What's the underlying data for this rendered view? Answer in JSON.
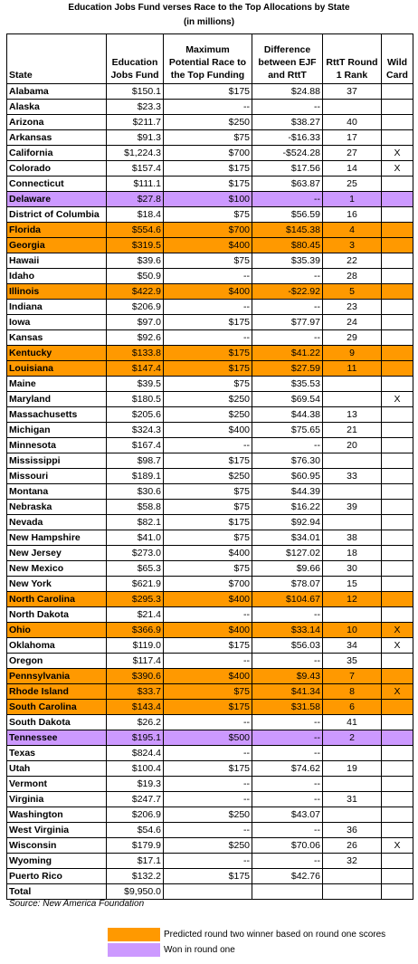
{
  "header": {
    "title": "Education Jobs Fund verses Race to the Top Allocations by State",
    "subtitle": "(in millions)"
  },
  "table": {
    "columns": [
      "State",
      "Education Jobs Fund",
      "Maximum Potential Race to the Top Funding",
      "Difference between EJF and RttT",
      "RttT Round 1 Rank",
      "Wild Card"
    ],
    "rows": [
      {
        "cells": [
          "Alabama",
          "$150.1",
          "$175",
          "$24.88",
          "37",
          null
        ]
      },
      {
        "cells": [
          "Alaska",
          "$23.3",
          "--",
          "--",
          null,
          null
        ]
      },
      {
        "cells": [
          "Arizona",
          "$211.7",
          "$250",
          "$38.27",
          "40",
          null
        ]
      },
      {
        "cells": [
          "Arkansas",
          "$91.3",
          "$75",
          "-$16.33",
          "17",
          null
        ]
      },
      {
        "cells": [
          "California",
          "$1,224.3",
          "$700",
          "-$524.28",
          "27",
          "X"
        ]
      },
      {
        "cells": [
          "Colorado",
          "$157.4",
          "$175",
          "$17.56",
          "14",
          "X"
        ]
      },
      {
        "cells": [
          "Connecticut",
          "$111.1",
          "$175",
          "$63.87",
          "25",
          null
        ]
      },
      {
        "cells": [
          "Delaware",
          "$27.8",
          "$100",
          "--",
          "1",
          null
        ],
        "color": "#cc99ff"
      },
      {
        "cells": [
          "District of Columbia",
          "$18.4",
          "$75",
          "$56.59",
          "16",
          null
        ]
      },
      {
        "cells": [
          "Florida",
          "$554.6",
          "$700",
          "$145.38",
          "4",
          null
        ],
        "color": "#ff9900"
      },
      {
        "cells": [
          "Georgia",
          "$319.5",
          "$400",
          "$80.45",
          "3",
          null
        ],
        "color": "#ff9900"
      },
      {
        "cells": [
          "Hawaii",
          "$39.6",
          "$75",
          "$35.39",
          "22",
          null
        ]
      },
      {
        "cells": [
          "Idaho",
          "$50.9",
          "--",
          "--",
          "28",
          null
        ]
      },
      {
        "cells": [
          "Illinois",
          "$422.9",
          "$400",
          "-$22.92",
          "5",
          null
        ],
        "color": "#ff9900"
      },
      {
        "cells": [
          "Indiana",
          "$206.9",
          "--",
          "--",
          "23",
          null
        ]
      },
      {
        "cells": [
          "Iowa",
          "$97.0",
          "$175",
          "$77.97",
          "24",
          null
        ]
      },
      {
        "cells": [
          "Kansas",
          "$92.6",
          "--",
          "--",
          "29",
          null
        ]
      },
      {
        "cells": [
          "Kentucky",
          "$133.8",
          "$175",
          "$41.22",
          "9",
          null
        ],
        "color": "#ff9900"
      },
      {
        "cells": [
          "Louisiana",
          "$147.4",
          "$175",
          "$27.59",
          "11",
          null
        ],
        "color": "#ff9900"
      },
      {
        "cells": [
          "Maine",
          "$39.5",
          "$75",
          "$35.53",
          null,
          null
        ]
      },
      {
        "cells": [
          "Maryland",
          "$180.5",
          "$250",
          "$69.54",
          null,
          "X"
        ]
      },
      {
        "cells": [
          "Massachusetts",
          "$205.6",
          "$250",
          "$44.38",
          "13",
          null
        ]
      },
      {
        "cells": [
          "Michigan",
          "$324.3",
          "$400",
          "$75.65",
          "21",
          null
        ]
      },
      {
        "cells": [
          "Minnesota",
          "$167.4",
          "--",
          "--",
          "20",
          null
        ]
      },
      {
        "cells": [
          "Mississippi",
          "$98.7",
          "$175",
          "$76.30",
          null,
          null
        ]
      },
      {
        "cells": [
          "Missouri",
          "$189.1",
          "$250",
          "$60.95",
          "33",
          null
        ]
      },
      {
        "cells": [
          "Montana",
          "$30.6",
          "$75",
          "$44.39",
          null,
          null
        ]
      },
      {
        "cells": [
          "Nebraska",
          "$58.8",
          "$75",
          "$16.22",
          "39",
          null
        ]
      },
      {
        "cells": [
          "Nevada",
          "$82.1",
          "$175",
          "$92.94",
          null,
          null
        ]
      },
      {
        "cells": [
          "New Hampshire",
          "$41.0",
          "$75",
          "$34.01",
          "38",
          null
        ]
      },
      {
        "cells": [
          "New Jersey",
          "$273.0",
          "$400",
          "$127.02",
          "18",
          null
        ]
      },
      {
        "cells": [
          "New Mexico",
          "$65.3",
          "$75",
          "$9.66",
          "30",
          null
        ]
      },
      {
        "cells": [
          "New York",
          "$621.9",
          "$700",
          "$78.07",
          "15",
          null
        ]
      },
      {
        "cells": [
          "North Carolina",
          "$295.3",
          "$400",
          "$104.67",
          "12",
          null
        ],
        "color": "#ff9900"
      },
      {
        "cells": [
          "North Dakota",
          "$21.4",
          "--",
          "--",
          null,
          null
        ]
      },
      {
        "cells": [
          "Ohio",
          "$366.9",
          "$400",
          "$33.14",
          "10",
          "X"
        ],
        "color": "#ff9900"
      },
      {
        "cells": [
          "Oklahoma",
          "$119.0",
          "$175",
          "$56.03",
          "34",
          "X"
        ]
      },
      {
        "cells": [
          "Oregon",
          "$117.4",
          "--",
          "--",
          "35",
          null
        ]
      },
      {
        "cells": [
          "Pennsylvania",
          "$390.6",
          "$400",
          "$9.43",
          "7",
          null
        ],
        "color": "#ff9900"
      },
      {
        "cells": [
          "Rhode Island",
          "$33.7",
          "$75",
          "$41.34",
          "8",
          "X"
        ],
        "color": "#ff9900"
      },
      {
        "cells": [
          "South Carolina",
          "$143.4",
          "$175",
          "$31.58",
          "6",
          null
        ],
        "color": "#ff9900"
      },
      {
        "cells": [
          "South Dakota",
          "$26.2",
          "--",
          "--",
          "41",
          null
        ]
      },
      {
        "cells": [
          "Tennessee",
          "$195.1",
          "$500",
          "--",
          "2",
          null
        ],
        "color": "#cc99ff"
      },
      {
        "cells": [
          "Texas",
          "$824.4",
          "--",
          "--",
          null,
          null
        ]
      },
      {
        "cells": [
          "Utah",
          "$100.4",
          "$175",
          "$74.62",
          "19",
          null
        ]
      },
      {
        "cells": [
          "Vermont",
          "$19.3",
          "--",
          "--",
          null,
          null
        ]
      },
      {
        "cells": [
          "Virginia",
          "$247.7",
          "--",
          "--",
          "31",
          null
        ]
      },
      {
        "cells": [
          "Washington",
          "$206.9",
          "$250",
          "$43.07",
          null,
          null
        ]
      },
      {
        "cells": [
          "West Virginia",
          "$54.6",
          "--",
          "--",
          "36",
          null
        ]
      },
      {
        "cells": [
          "Wisconsin",
          "$179.9",
          "$250",
          "$70.06",
          "26",
          "X"
        ]
      },
      {
        "cells": [
          "Wyoming",
          "$17.1",
          "--",
          "--",
          "32",
          null
        ]
      },
      {
        "cells": [
          "Puerto Rico",
          "$132.2",
          "$175",
          "$42.76",
          null,
          null
        ]
      },
      {
        "cells": [
          "Total",
          "$9,950.0",
          null,
          null,
          null,
          null
        ]
      }
    ]
  },
  "source": "Source: New America Foundation",
  "legend": [
    {
      "label": "Predicted round two winner based on round one scores",
      "color": "#ff9900"
    },
    {
      "label": "Won in round one",
      "color": "#cc99ff"
    }
  ]
}
